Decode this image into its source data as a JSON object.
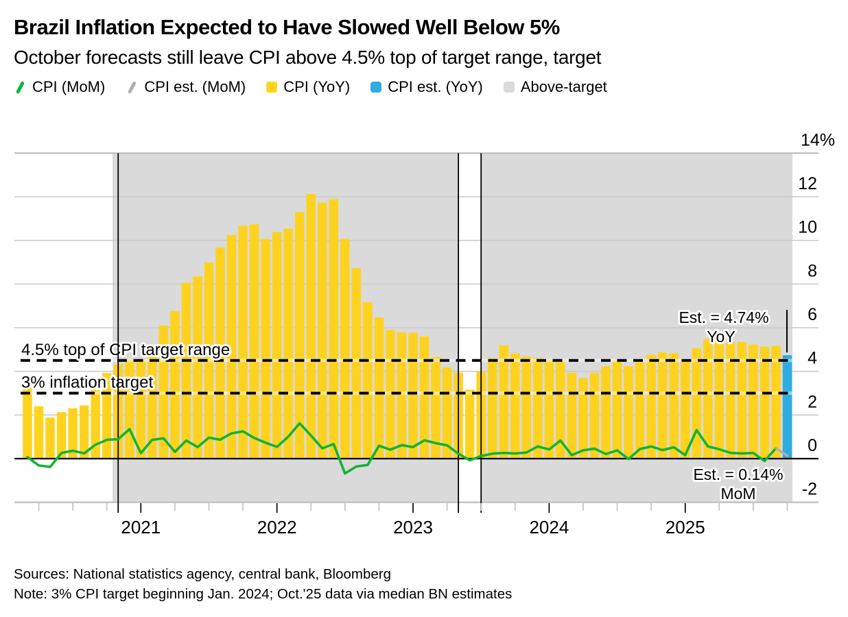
{
  "header": {
    "title": "Brazil Inflation Expected to Have Slowed Well Below 5%",
    "subtitle": "October forecasts still leave CPI above 4.5% top of target range, target"
  },
  "legend": [
    {
      "label": "CPI (MoM)",
      "swatch": "line",
      "color": "#10B433"
    },
    {
      "label": "CPI est. (MoM)",
      "swatch": "line",
      "color": "#B0B0B0"
    },
    {
      "label": "CPI (YoY)",
      "swatch": "square",
      "color": "#FFD21E"
    },
    {
      "label": "CPI est. (YoY)",
      "swatch": "square",
      "color": "#2FACE2"
    },
    {
      "label": "Above-target",
      "swatch": "square",
      "color": "#DADADA"
    }
  ],
  "chart_data": {
    "type": "bar",
    "x_start_month": "2020-03",
    "x_last_actual_month": "2025-09",
    "x_estimate_month": "2025-10",
    "ylim": [
      -2,
      14
    ],
    "grid": true,
    "legend_position": "top",
    "y_ticks": [
      {
        "label": "14%",
        "value": 14
      },
      {
        "label": "12",
        "value": 12
      },
      {
        "label": "10",
        "value": 10
      },
      {
        "label": "8",
        "value": 8
      },
      {
        "label": "6",
        "value": 6
      },
      {
        "label": "4",
        "value": 4
      },
      {
        "label": "2",
        "value": 2
      },
      {
        "label": "0",
        "value": 0
      },
      {
        "label": "-2",
        "value": -2
      }
    ],
    "x_year_ticks": [
      {
        "label": "2021",
        "month_index": 10
      },
      {
        "label": "2022",
        "month_index": 22
      },
      {
        "label": "2023",
        "month_index": 34
      },
      {
        "label": "2024",
        "month_index": 46
      },
      {
        "label": "2025",
        "month_index": 58
      }
    ],
    "x_minor_tick_month_indices": [
      1,
      4,
      7,
      13,
      16,
      19,
      25,
      28,
      31,
      37,
      40,
      43,
      49,
      52,
      55,
      61,
      64,
      67
    ],
    "series": [
      {
        "name": "CPI (YoY)",
        "type": "bar",
        "color": "#FFD21E",
        "values": [
          3.3,
          2.4,
          1.88,
          2.13,
          2.31,
          2.44,
          3.14,
          3.92,
          4.31,
          4.52,
          4.56,
          5.2,
          6.1,
          6.76,
          8.06,
          8.35,
          8.99,
          9.68,
          10.25,
          10.67,
          10.74,
          10.06,
          10.38,
          10.54,
          11.3,
          12.13,
          11.73,
          11.89,
          10.07,
          8.73,
          7.17,
          6.47,
          5.9,
          5.79,
          5.77,
          5.6,
          4.65,
          4.18,
          3.94,
          3.16,
          3.99,
          4.61,
          5.19,
          4.82,
          4.68,
          4.62,
          4.51,
          4.5,
          3.93,
          3.69,
          3.93,
          4.23,
          4.5,
          4.24,
          4.42,
          4.76,
          4.87,
          4.83,
          4.56,
          5.06,
          5.48,
          5.53,
          5.32,
          5.35,
          5.23,
          5.13,
          5.17
        ]
      },
      {
        "name": "CPI est. (YoY)",
        "type": "bar",
        "color": "#2FACE2",
        "values": [
          4.74
        ]
      },
      {
        "name": "CPI (MoM)",
        "type": "line",
        "color": "#10B433",
        "values": [
          0.07,
          -0.31,
          -0.38,
          0.26,
          0.36,
          0.24,
          0.64,
          0.86,
          0.89,
          1.35,
          0.25,
          0.86,
          0.93,
          0.31,
          0.83,
          0.53,
          0.96,
          0.87,
          1.16,
          1.25,
          0.95,
          0.73,
          0.54,
          1.01,
          1.62,
          1.06,
          0.47,
          0.67,
          -0.68,
          -0.36,
          -0.29,
          0.59,
          0.41,
          0.62,
          0.53,
          0.84,
          0.71,
          0.61,
          0.23,
          -0.08,
          0.12,
          0.23,
          0.26,
          0.24,
          0.28,
          0.56,
          0.42,
          0.83,
          0.16,
          0.38,
          0.46,
          0.21,
          0.38,
          -0.02,
          0.44,
          0.56,
          0.39,
          0.52,
          0.16,
          1.31,
          0.56,
          0.43,
          0.26,
          0.24,
          0.26,
          -0.11,
          0.48
        ]
      },
      {
        "name": "CPI est. (MoM)",
        "type": "line",
        "color": "#B0B0B0",
        "values": [
          0.14
        ]
      }
    ],
    "target_lines": [
      {
        "value": 4.5,
        "label": "4.5% top of CPI target range"
      },
      {
        "value": 3.0,
        "label": "3% inflation target"
      }
    ],
    "above_target_bands": [
      {
        "from_month_index": 7.5,
        "to_month_index": 38.0
      },
      {
        "from_month_index": 40.0,
        "to_month_index": 67.45
      }
    ],
    "divider_line_month_indices": [
      8,
      38,
      40
    ],
    "annotations": {
      "yoy_est_line1": "Est. = 4.74%",
      "yoy_est_line2": "YoY",
      "mom_est_line1": "Est. = 0.14%",
      "mom_est_line2": "MoM"
    }
  },
  "footer": {
    "sources": "Sources: National statistics agency, central bank, Bloomberg",
    "note": "Note: 3% CPI target beginning Jan. 2024; Oct.'25 data via median BN estimates"
  }
}
